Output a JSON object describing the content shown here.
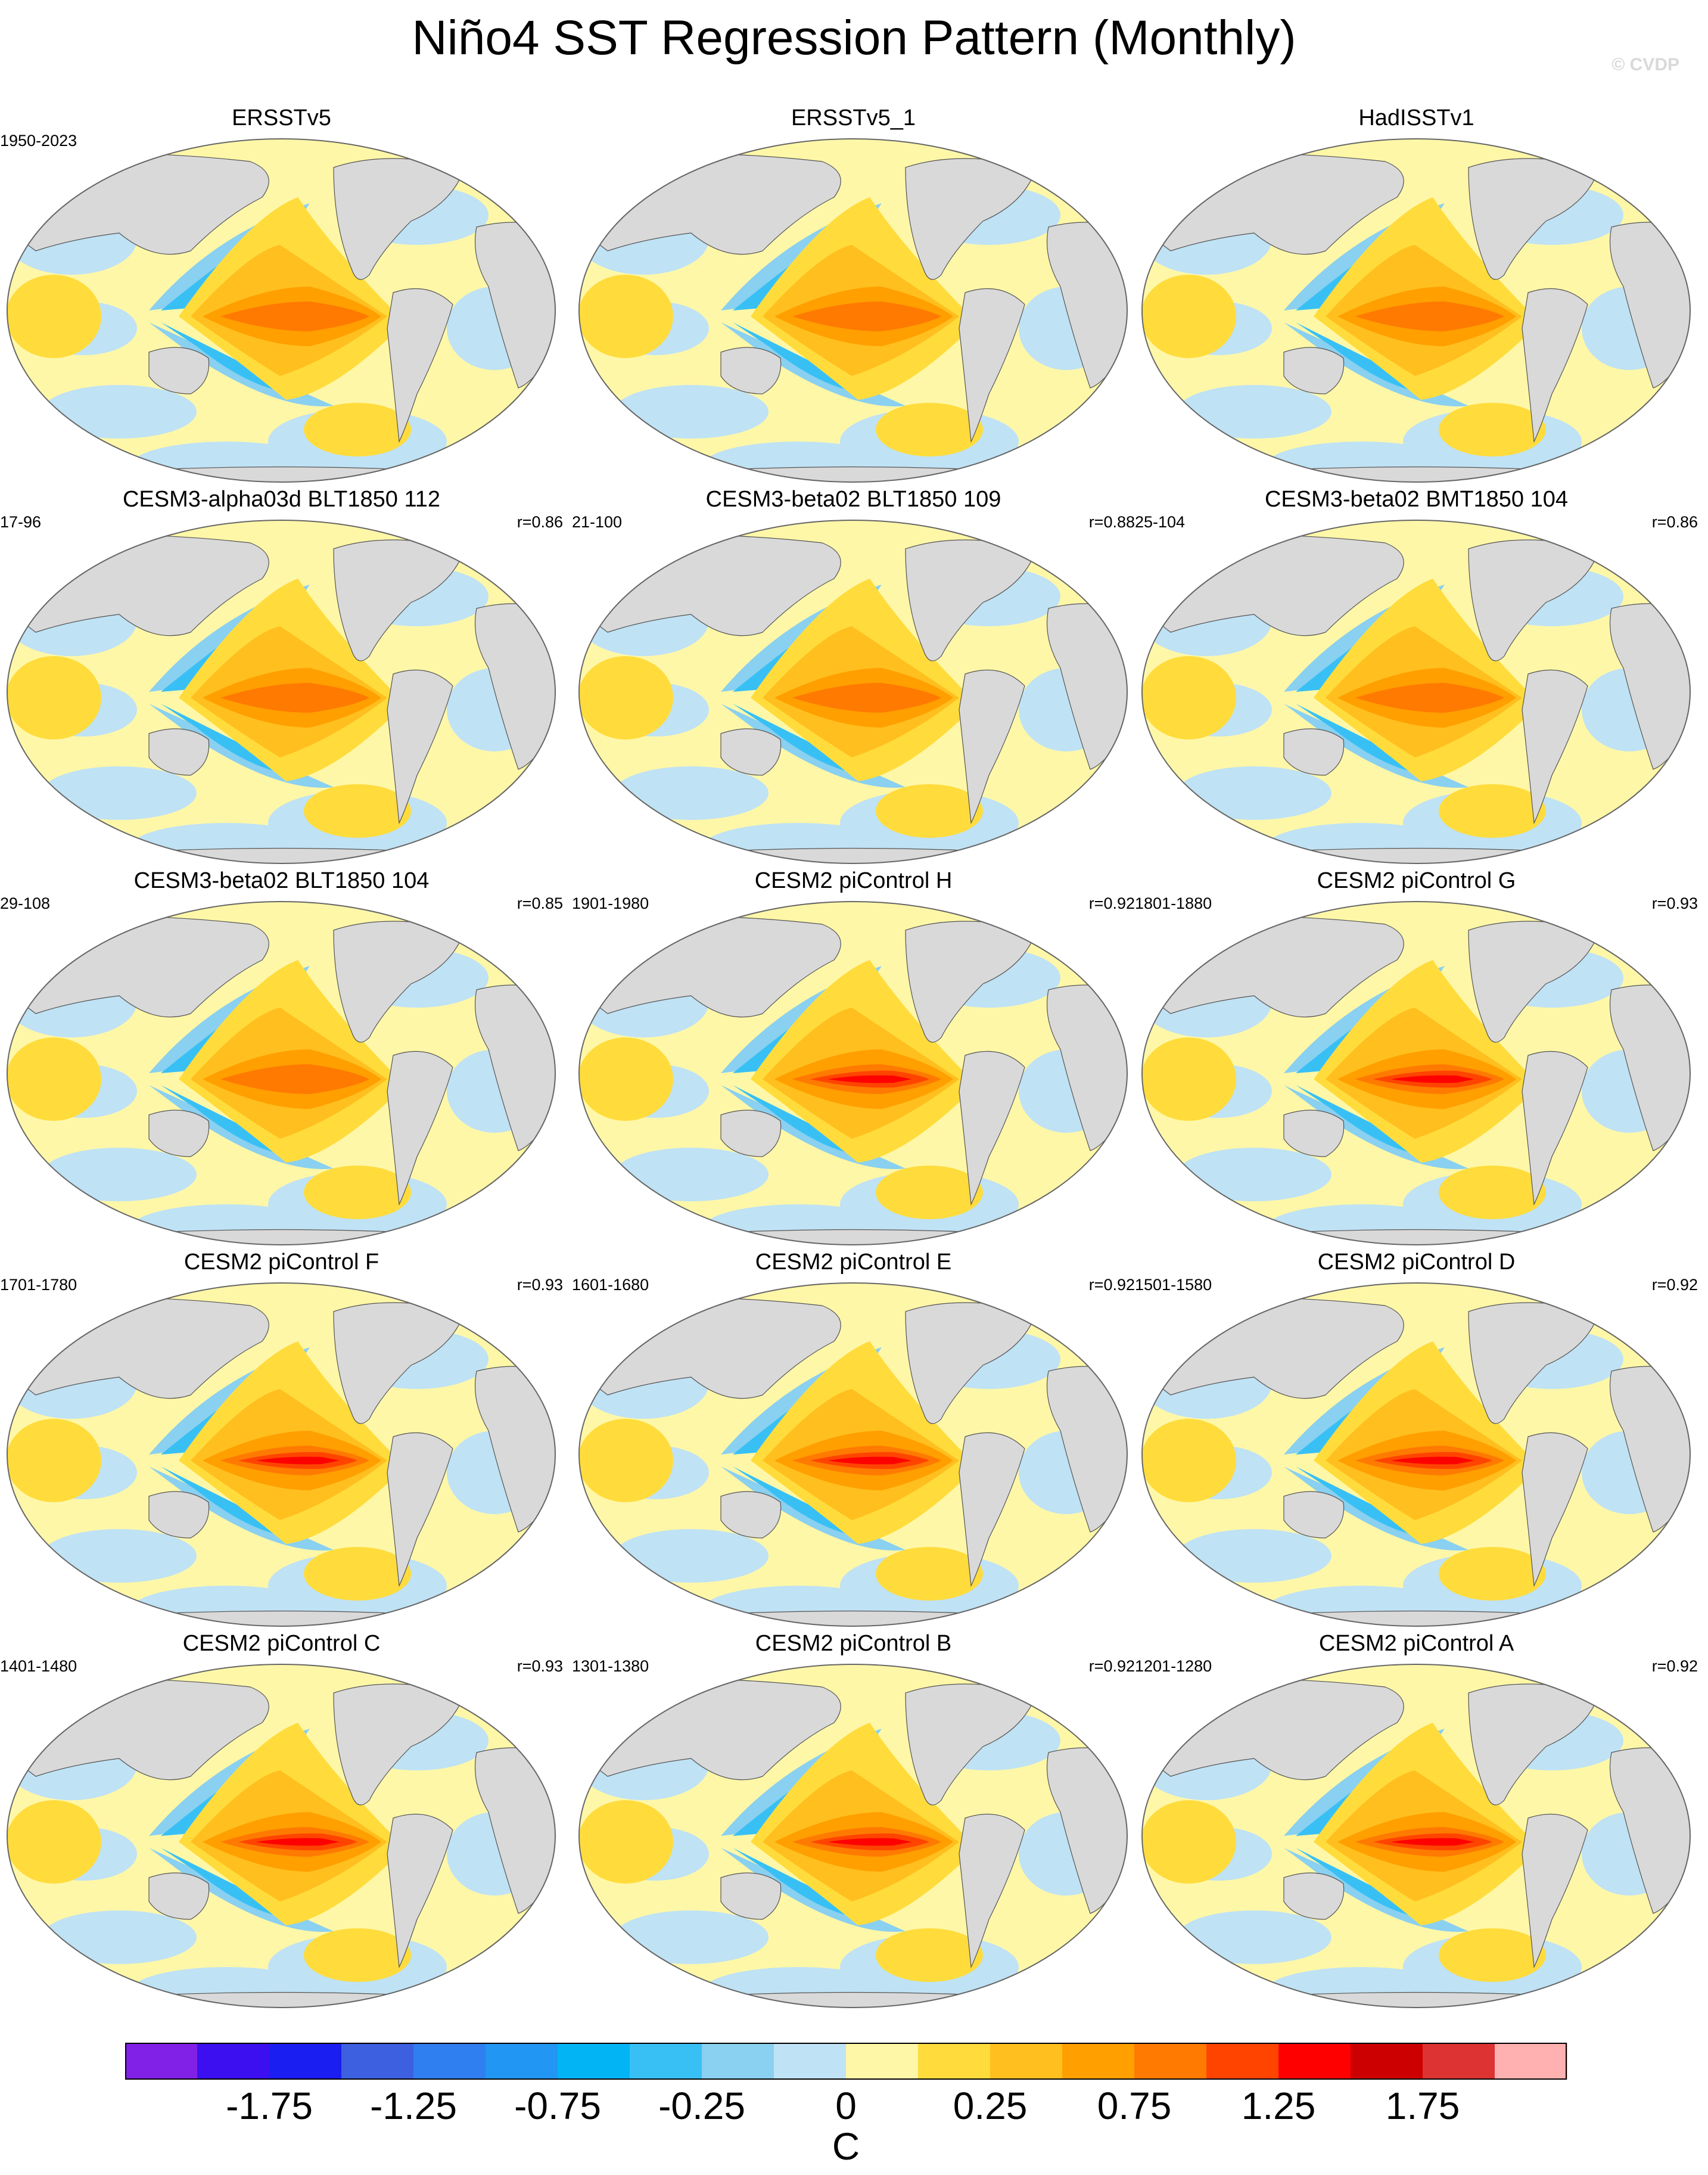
{
  "title": "Niño4 SST Regression Pattern (Monthly)",
  "watermark": "© CVDP",
  "panels": [
    {
      "title": "ERSSTv5",
      "period": "1950-2023",
      "r": ""
    },
    {
      "title": "ERSSTv5_1",
      "period": "",
      "r": ""
    },
    {
      "title": "HadISSTv1",
      "period": "",
      "r": ""
    },
    {
      "title": "CESM3-alpha03d BLT1850 112",
      "period": "17-96",
      "r": "r=0.86"
    },
    {
      "title": "CESM3-beta02 BLT1850 109",
      "period": "21-100",
      "r": "r=0.88"
    },
    {
      "title": "CESM3-beta02 BMT1850 104",
      "period": "25-104",
      "r": "r=0.86"
    },
    {
      "title": "CESM3-beta02 BLT1850 104",
      "period": "29-108",
      "r": "r=0.85"
    },
    {
      "title": "CESM2 piControl H",
      "period": "1901-1980",
      "r": "r=0.92"
    },
    {
      "title": "CESM2 piControl G",
      "period": "1801-1880",
      "r": "r=0.93"
    },
    {
      "title": "CESM2 piControl F",
      "period": "1701-1780",
      "r": "r=0.93"
    },
    {
      "title": "CESM2 piControl E",
      "period": "1601-1680",
      "r": "r=0.92"
    },
    {
      "title": "CESM2 piControl D",
      "period": "1501-1580",
      "r": "r=0.92"
    },
    {
      "title": "CESM2 piControl C",
      "period": "1401-1480",
      "r": "r=0.93"
    },
    {
      "title": "CESM2 piControl B",
      "period": "1301-1380",
      "r": "r=0.92"
    },
    {
      "title": "CESM2 piControl A",
      "period": "1201-1280",
      "r": "r=0.92"
    }
  ],
  "colorbar": {
    "colors": [
      "#8120e6",
      "#3b0ff0",
      "#1a1ef0",
      "#3c60e0",
      "#2f7ff0",
      "#2196f3",
      "#03b4f5",
      "#38c0f5",
      "#8ad0f0",
      "#bfe2f4",
      "#fff7a8",
      "#ffdc3c",
      "#ffbf1f",
      "#ff9f00",
      "#ff7a00",
      "#ff4400",
      "#ff0000",
      "#cc0000",
      "#dd3333",
      "#ffb0b0"
    ],
    "tick_labels": [
      "-1.75",
      "-1.25",
      "-0.75",
      "-0.25",
      "0",
      "0.25",
      "0.75",
      "1.25",
      "1.75"
    ],
    "units": "C"
  }
}
